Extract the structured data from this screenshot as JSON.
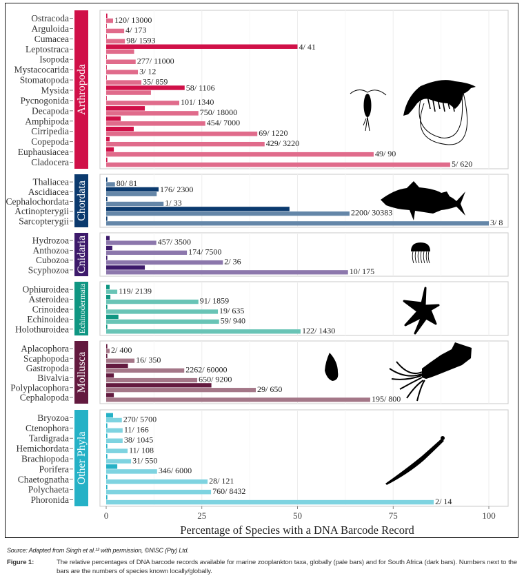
{
  "figure": {
    "source": "Source: Adapted from Singh et al.¹² with permission, ©NISC (Pty) Ltd.",
    "caption_label": "Figure 1:",
    "caption_text": "The relative percentages of DNA barcode records available for marine zooplankton taxa, globally (pale bars) and for South Africa (dark bars). Numbers next to the bars are the numbers of species known locally/globally."
  },
  "chart_data": {
    "type": "bar",
    "orientation": "horizontal",
    "xlabel": "Percentage of Species with a DNA Barcode Record",
    "xlim": [
      0,
      100
    ],
    "xticks": [
      0,
      25,
      50,
      75,
      100
    ],
    "grid": true,
    "series_names": [
      "Global (pale bars)",
      "South Africa (dark bars)"
    ],
    "groups": [
      {
        "name": "Arthropoda",
        "dark_color": "#d01048",
        "pale_color": "#e06b8b",
        "icons": [
          "copepod-silhouette",
          "shrimp-silhouette"
        ],
        "taxa": [
          {
            "name": "Ostracoda",
            "sa": 0.3,
            "global": 1.8,
            "label": "120/ 13000"
          },
          {
            "name": "Arguloida",
            "sa": 0,
            "global": 4.7,
            "label": "4/ 173"
          },
          {
            "name": "Cumacea",
            "sa": 0,
            "global": 4.9,
            "label": "98/ 1593"
          },
          {
            "name": "Leptostraca",
            "sa": 50,
            "global": 7.3,
            "label": "4/ 41"
          },
          {
            "name": "Isopoda",
            "sa": 0,
            "global": 7.7,
            "label": "277/ 11000"
          },
          {
            "name": "Mystacocarida",
            "sa": 0,
            "global": 8.3,
            "label": "3/ 12"
          },
          {
            "name": "Stomatopoda",
            "sa": 0,
            "global": 9.2,
            "label": "35/ 859"
          },
          {
            "name": "Mysida",
            "sa": 20.5,
            "global": 11.7,
            "label": "58/ 1106"
          },
          {
            "name": "Pycnogonida",
            "sa": 0,
            "global": 19.1,
            "label": "101/ 1340"
          },
          {
            "name": "Decapoda",
            "sa": 10.1,
            "global": 24.1,
            "label": "750/ 18000"
          },
          {
            "name": "Amphipoda",
            "sa": 3.8,
            "global": 25.9,
            "label": "454/ 7000"
          },
          {
            "name": "Cirripedia",
            "sa": 7.2,
            "global": 39.5,
            "label": "69/ 1220"
          },
          {
            "name": "Copepoda",
            "sa": 0.9,
            "global": 41.4,
            "label": "429/ 3220"
          },
          {
            "name": "Euphausiacea",
            "sa": 2.0,
            "global": 69.9,
            "label": "49/ 90"
          },
          {
            "name": "Cladocera",
            "sa": 0.3,
            "global": 89.9,
            "label": "5/ 620"
          }
        ]
      },
      {
        "name": "Chordata",
        "dark_color": "#0b3a6e",
        "pale_color": "#6486a8",
        "icons": [
          "fish-silhouette"
        ],
        "taxa": [
          {
            "name": "Thaliacea",
            "sa": 0.3,
            "global": 2.3,
            "label": "80/ 81"
          },
          {
            "name": "Ascidiacea",
            "sa": 13.7,
            "global": 13.2,
            "label": "176/ 2300"
          },
          {
            "name": "Cephalochordata",
            "sa": 0.3,
            "global": 15.0,
            "label": "1/ 33"
          },
          {
            "name": "Actinopterygii",
            "sa": 47.9,
            "global": 63.6,
            "label": "2200/ 30383"
          },
          {
            "name": "Sarcopterygii",
            "sa": 0.3,
            "global": 100,
            "label": "3/ 8"
          }
        ]
      },
      {
        "name": "Cnidaria",
        "dark_color": "#3d1a6b",
        "pale_color": "#8c77ac",
        "icons": [
          "jellyfish-silhouette"
        ],
        "taxa": [
          {
            "name": "Hydrozoa",
            "sa": 0.9,
            "global": 13.1,
            "label": "457/ 3500"
          },
          {
            "name": "Anthozoa",
            "sa": 1.6,
            "global": 21.1,
            "label": "174/ 7500"
          },
          {
            "name": "Cubozoa",
            "sa": 0.3,
            "global": 30.5,
            "label": "2/ 36"
          },
          {
            "name": "Scyphozoa",
            "sa": 10.1,
            "global": 63.2,
            "label": "10/ 175"
          }
        ]
      },
      {
        "name": "Echinodermata",
        "dark_color": "#0f9682",
        "pale_color": "#69c4b6",
        "icons": [
          "starfish-silhouette"
        ],
        "taxa": [
          {
            "name": "Ophiuroidea",
            "sa": 0.9,
            "global": 2.9,
            "label": "119/ 2139"
          },
          {
            "name": "Asteroidea",
            "sa": 1.1,
            "global": 24.1,
            "label": "91/ 1859"
          },
          {
            "name": "Crinoidea",
            "sa": 0.3,
            "global": 29.2,
            "label": "19/ 635"
          },
          {
            "name": "Echinoidea",
            "sa": 3.2,
            "global": 29.5,
            "label": "59/ 940"
          },
          {
            "name": "Holothuroidea",
            "sa": 0.3,
            "global": 50.8,
            "label": "122/ 1430"
          }
        ]
      },
      {
        "name": "Mollusca",
        "dark_color": "#631a3f",
        "pale_color": "#a47788",
        "icons": [
          "snail-shell-silhouette",
          "squid-silhouette"
        ],
        "taxa": [
          {
            "name": "Aplacophora",
            "sa": 0.3,
            "global": 0.9,
            "label": "2/ 400"
          },
          {
            "name": "Scaphopoda",
            "sa": 0.3,
            "global": 7.4,
            "label": "16/ 350"
          },
          {
            "name": "Gastropoda",
            "sa": 5.7,
            "global": 20.4,
            "label": "2262/ 60000"
          },
          {
            "name": "Bivalvia",
            "sa": 2.0,
            "global": 23.8,
            "label": "650/ 9200"
          },
          {
            "name": "Polyplacophora",
            "sa": 27.5,
            "global": 39.1,
            "label": "29/ 650"
          },
          {
            "name": "Cephalopoda",
            "sa": 2.0,
            "global": 69.0,
            "label": "195/ 800"
          }
        ]
      },
      {
        "name": "Other Phyla",
        "dark_color": "#25b1c6",
        "pale_color": "#7ed3e0",
        "icons": [
          "arrow-worm-silhouette"
        ],
        "taxa": [
          {
            "name": "Bryozoa",
            "sa": 1.8,
            "global": 4.1,
            "label": "270/ 5700"
          },
          {
            "name": "Ctenophora",
            "sa": 0.3,
            "global": 4.3,
            "label": "11/ 166"
          },
          {
            "name": "Tardigrada",
            "sa": 0.3,
            "global": 4.3,
            "label": "38/ 1045"
          },
          {
            "name": "Hemichordata",
            "sa": 0.3,
            "global": 5.6,
            "label": "11/ 108"
          },
          {
            "name": "Brachiopoda",
            "sa": 0.3,
            "global": 6.5,
            "label": "31/ 550"
          },
          {
            "name": "Porifera",
            "sa": 2.9,
            "global": 13.3,
            "label": "346/ 6000"
          },
          {
            "name": "Chaetognatha",
            "sa": 0.3,
            "global": 26.5,
            "label": "28/ 121"
          },
          {
            "name": "Polychaeta",
            "sa": 0.3,
            "global": 27.4,
            "label": "760/ 8432"
          },
          {
            "name": "Phoronida",
            "sa": 0.3,
            "global": 85.6,
            "label": "2/ 14"
          }
        ]
      }
    ]
  }
}
